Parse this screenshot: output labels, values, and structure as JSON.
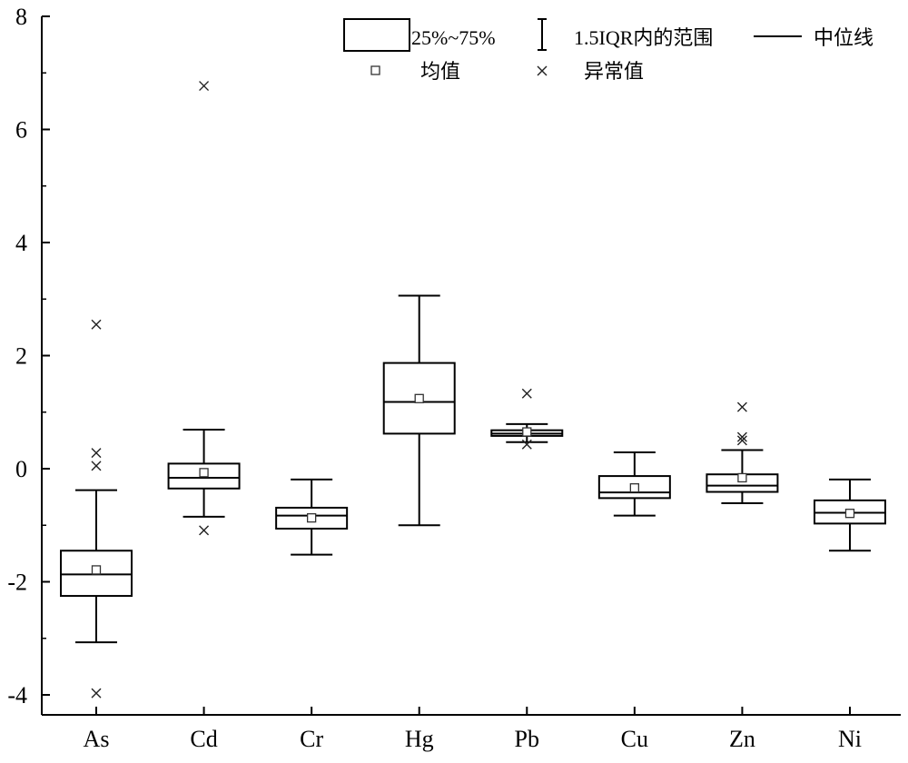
{
  "chart_data": {
    "type": "box",
    "ylim": [
      -4.2,
      8
    ],
    "yticks": [
      -4,
      -2,
      0,
      2,
      4,
      6,
      8
    ],
    "ytick_labels": [
      "-4",
      "-2",
      "0",
      "2",
      "4",
      "6",
      "8"
    ],
    "categories": [
      "As",
      "Cd",
      "Cr",
      "Hg",
      "Pb",
      "Cu",
      "Zn",
      "Ni"
    ],
    "boxes": [
      {
        "name": "As",
        "whisker_low": -3.07,
        "q1": -2.25,
        "median": -1.87,
        "q3": -1.45,
        "whisker_high": -0.38,
        "mean": -1.79,
        "outliers": [
          2.55,
          0.28,
          0.05,
          -3.97
        ]
      },
      {
        "name": "Cd",
        "whisker_low": -0.85,
        "q1": -0.35,
        "median": -0.16,
        "q3": 0.09,
        "whisker_high": 0.69,
        "mean": -0.07,
        "outliers": [
          6.77,
          -1.09
        ]
      },
      {
        "name": "Cr",
        "whisker_low": -1.52,
        "q1": -1.06,
        "median": -0.83,
        "q3": -0.69,
        "whisker_high": -0.19,
        "mean": -0.87,
        "outliers": []
      },
      {
        "name": "Hg",
        "whisker_low": -1.0,
        "q1": 0.62,
        "median": 1.18,
        "q3": 1.87,
        "whisker_high": 3.06,
        "mean": 1.24,
        "outliers": []
      },
      {
        "name": "Pb",
        "whisker_low": 0.47,
        "q1": 0.58,
        "median": 0.62,
        "q3": 0.68,
        "whisker_high": 0.79,
        "mean": 0.65,
        "outliers": [
          1.33,
          0.43
        ]
      },
      {
        "name": "Cu",
        "whisker_low": -0.83,
        "q1": -0.52,
        "median": -0.42,
        "q3": -0.13,
        "whisker_high": 0.29,
        "mean": -0.34,
        "outliers": []
      },
      {
        "name": "Zn",
        "whisker_low": -0.61,
        "q1": -0.41,
        "median": -0.3,
        "q3": -0.1,
        "whisker_high": 0.33,
        "mean": -0.16,
        "outliers": [
          1.09,
          0.56,
          0.5
        ]
      },
      {
        "name": "Ni",
        "whisker_low": -1.45,
        "q1": -0.97,
        "median": -0.78,
        "q3": -0.56,
        "whisker_high": -0.19,
        "mean": -0.79,
        "outliers": []
      }
    ],
    "legend": {
      "box": "25%~75%",
      "whisker": "1.5IQR内的范围",
      "median": "中位线",
      "mean": "均值",
      "outlier": "异常值",
      "placement": "top-right"
    }
  }
}
